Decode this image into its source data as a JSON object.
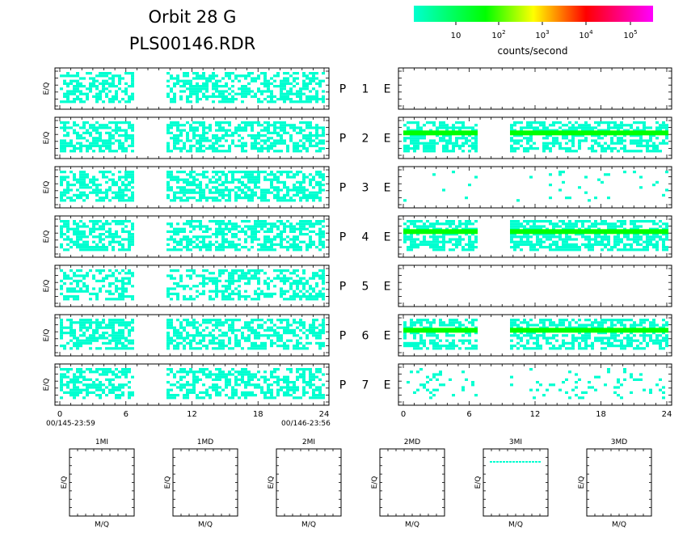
{
  "header": {
    "title_line1": "Orbit 28 G",
    "title_line2": "PLS00146.RDR"
  },
  "colorbar": {
    "label": "counts/second",
    "ticks": [
      "10",
      "10^2",
      "10^3",
      "10^4",
      "10^5"
    ],
    "colors": [
      "#00ffd0",
      "#00ff00",
      "#ffff00",
      "#ff0000",
      "#ff00ff"
    ]
  },
  "rows": [
    {
      "label": "P 1 E",
      "left": {
        "level": 1,
        "density": 0.55
      },
      "right": {
        "level": 0,
        "density": 0.0
      }
    },
    {
      "label": "P 2 E",
      "left": {
        "level": 1,
        "density": 0.6
      },
      "right": {
        "level": 2,
        "density": 0.6,
        "band_level": 2
      }
    },
    {
      "label": "P 3 E",
      "left": {
        "level": 1,
        "density": 0.6
      },
      "right": {
        "level": 1,
        "density": 0.04
      }
    },
    {
      "label": "P 4 E",
      "left": {
        "level": 1,
        "density": 0.6
      },
      "right": {
        "level": 2,
        "density": 0.65,
        "band_level": 2
      }
    },
    {
      "label": "P 5 E",
      "left": {
        "level": 1,
        "density": 0.45
      },
      "right": {
        "level": 0,
        "density": 0.0
      }
    },
    {
      "label": "P 6 E",
      "left": {
        "level": 1,
        "density": 0.6
      },
      "right": {
        "level": 2,
        "density": 0.55,
        "band_level": 2
      }
    },
    {
      "label": "P 7 E",
      "left": {
        "level": 1,
        "density": 0.55
      },
      "right": {
        "level": 1,
        "density": 0.12
      }
    }
  ],
  "axes": {
    "ylabel": "E/Q",
    "x_ticks": [
      "0",
      "6",
      "12",
      "18",
      "24"
    ],
    "x_range": [
      0,
      24
    ],
    "data_gap_hours": [
      6.6,
      9.5
    ],
    "start_label": "00/145-23:59",
    "end_label": "00/146-23:56"
  },
  "mq_panels": [
    {
      "title": "1MI",
      "xlabel": "M/Q",
      "ylabel": "E/Q",
      "has_line": false
    },
    {
      "title": "1MD",
      "xlabel": "M/Q",
      "ylabel": "E/Q",
      "has_line": false
    },
    {
      "title": "2MI",
      "xlabel": "M/Q",
      "ylabel": "E/Q",
      "has_line": false
    },
    {
      "title": "2MD",
      "xlabel": "M/Q",
      "ylabel": "E/Q",
      "has_line": false
    },
    {
      "title": "3MI",
      "xlabel": "M/Q",
      "ylabel": "E/Q",
      "has_line": true
    },
    {
      "title": "3MD",
      "xlabel": "M/Q",
      "ylabel": "E/Q",
      "has_line": false
    }
  ],
  "chart_data": {
    "type": "heatmap",
    "title": "Orbit 28 G",
    "subtitle": "PLS00146.RDR",
    "xlabel": "",
    "ylabel": "E/Q",
    "x_range": [
      0,
      24
    ],
    "x_ticks": [
      0,
      6,
      12,
      18,
      24
    ],
    "color_scale": "log counts/second",
    "colorbar_ticks": [
      "10",
      "10^2",
      "10^3",
      "10^4",
      "10^5"
    ],
    "panels": [
      "P 1 E",
      "P 2 E",
      "P 3 E",
      "P 4 E",
      "P 5 E",
      "P 6 E",
      "P 7 E"
    ],
    "grid": false
  }
}
